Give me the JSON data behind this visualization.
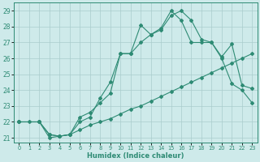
{
  "bg_color": "#ceeaea",
  "grid_color": "#b8d8d8",
  "line_color": "#2e8b74",
  "xlabel": "Humidex (Indice chaleur)",
  "xlim": [
    -0.5,
    23.5
  ],
  "ylim": [
    20.7,
    29.5
  ],
  "yticks": [
    21,
    22,
    23,
    24,
    25,
    26,
    27,
    28,
    29
  ],
  "xticks": [
    0,
    1,
    2,
    3,
    4,
    5,
    6,
    7,
    8,
    9,
    10,
    11,
    12,
    13,
    14,
    15,
    16,
    17,
    18,
    19,
    20,
    21,
    22,
    23
  ],
  "line1_x": [
    0,
    1,
    2,
    3,
    4,
    5,
    6,
    7,
    8,
    9,
    10,
    11,
    12,
    13,
    14,
    15,
    16,
    17,
    18,
    19,
    20,
    21,
    22,
    23
  ],
  "line1_y": [
    22.0,
    22.0,
    22.0,
    21.2,
    21.1,
    21.2,
    21.5,
    21.8,
    22.0,
    22.2,
    22.5,
    22.8,
    23.0,
    23.3,
    23.6,
    23.9,
    24.2,
    24.5,
    24.8,
    25.1,
    25.4,
    25.7,
    26.0,
    26.3
  ],
  "line2_x": [
    0,
    2,
    3,
    4,
    5,
    6,
    7,
    8,
    9,
    10,
    11,
    12,
    13,
    14,
    15,
    16,
    17,
    18,
    19,
    20,
    21,
    22,
    23
  ],
  "line2_y": [
    22.0,
    22.0,
    21.2,
    21.1,
    21.2,
    22.0,
    22.3,
    23.5,
    24.5,
    26.3,
    26.3,
    28.1,
    27.5,
    27.8,
    28.7,
    29.0,
    28.4,
    27.2,
    27.0,
    26.1,
    26.9,
    24.3,
    24.1
  ],
  "line3_x": [
    0,
    2,
    3,
    4,
    5,
    6,
    7,
    8,
    9,
    10,
    11,
    12,
    13,
    14,
    15,
    16,
    17,
    18,
    19,
    20,
    21,
    22,
    23
  ],
  "line3_y": [
    22.0,
    22.0,
    21.0,
    21.1,
    21.2,
    22.3,
    22.6,
    23.2,
    23.8,
    26.3,
    26.3,
    27.0,
    27.5,
    27.9,
    29.0,
    28.4,
    27.0,
    27.0,
    27.0,
    26.0,
    24.4,
    24.0,
    23.2
  ],
  "marker": "D",
  "markersize": 2.0,
  "linewidth": 0.8
}
